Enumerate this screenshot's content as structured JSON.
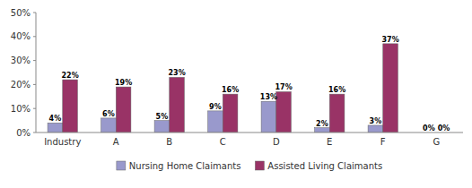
{
  "chart_data": {
    "type": "bar",
    "categories": [
      "Industry",
      "A",
      "B",
      "C",
      "D",
      "E",
      "F",
      "G"
    ],
    "series": [
      {
        "name": "Nursing Home Claimants",
        "color": "#9999CC",
        "values": [
          4,
          6,
          5,
          9,
          13,
          2,
          3,
          0
        ],
        "value_labels": [
          "4%",
          "6%",
          "5%",
          "9%",
          "13%",
          "2%",
          "3%",
          "0%"
        ]
      },
      {
        "name": "Assisted Living Claimants",
        "color": "#993366",
        "values": [
          22,
          19,
          23,
          16,
          17,
          16,
          37,
          0
        ],
        "value_labels": [
          "22%",
          "19%",
          "23%",
          "16%",
          "17%",
          "16%",
          "37%",
          "0%"
        ]
      }
    ],
    "ylim": [
      0,
      50
    ],
    "yticks": [
      {
        "value": 0,
        "label": "0%"
      },
      {
        "value": 10,
        "label": "10%"
      },
      {
        "value": 20,
        "label": "20%"
      },
      {
        "value": 30,
        "label": "30%"
      },
      {
        "value": 40,
        "label": "40%"
      },
      {
        "value": 50,
        "label": "50%"
      }
    ],
    "grid": false,
    "legend": "bottom",
    "data_labels": true
  }
}
